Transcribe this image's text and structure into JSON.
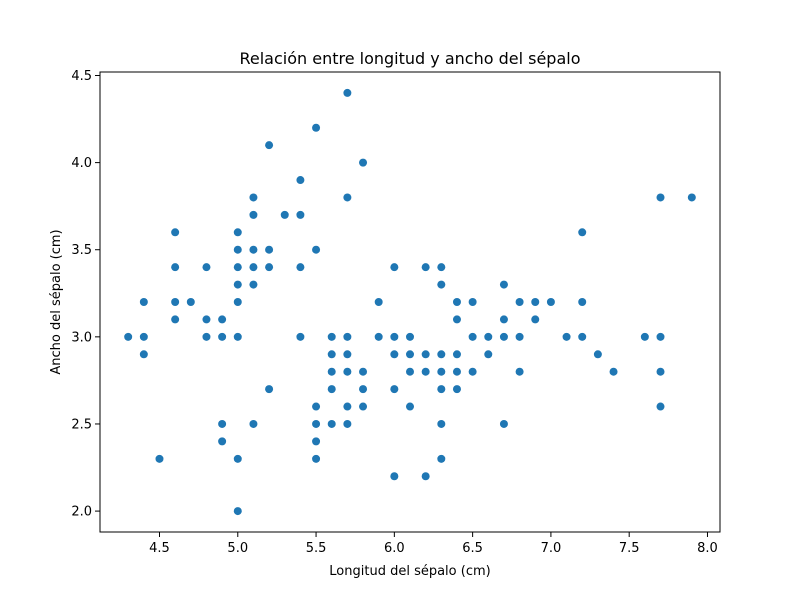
{
  "chart_data": {
    "type": "scatter",
    "title": "Relación entre longitud y ancho del sépalo",
    "xlabel": "Longitud del sépalo (cm)",
    "ylabel": "Ancho del sépalo (cm)",
    "xlim": [
      4.12,
      8.08
    ],
    "ylim": [
      1.88,
      4.52
    ],
    "xticks": [
      4.5,
      5.0,
      5.5,
      6.0,
      6.5,
      7.0,
      7.5,
      8.0
    ],
    "xtick_labels": [
      "4.5",
      "5.0",
      "5.5",
      "6.0",
      "6.5",
      "7.0",
      "7.5",
      "8.0"
    ],
    "yticks": [
      2.0,
      2.5,
      3.0,
      3.5,
      4.0,
      4.5
    ],
    "ytick_labels": [
      "2.0",
      "2.5",
      "3.0",
      "3.5",
      "4.0",
      "4.5"
    ],
    "grid": false,
    "legend": "none",
    "marker_color": "#1f77b4",
    "points": [
      [
        4.3,
        3.0
      ],
      [
        4.4,
        2.9
      ],
      [
        4.4,
        3.0
      ],
      [
        4.4,
        3.2
      ],
      [
        4.5,
        2.3
      ],
      [
        4.6,
        3.1
      ],
      [
        4.6,
        3.2
      ],
      [
        4.6,
        3.4
      ],
      [
        4.6,
        3.6
      ],
      [
        4.7,
        3.2
      ],
      [
        4.8,
        3.0
      ],
      [
        4.8,
        3.1
      ],
      [
        4.8,
        3.4
      ],
      [
        4.9,
        2.4
      ],
      [
        4.9,
        2.5
      ],
      [
        4.9,
        3.0
      ],
      [
        4.9,
        3.1
      ],
      [
        5.0,
        2.0
      ],
      [
        5.0,
        2.3
      ],
      [
        5.0,
        3.0
      ],
      [
        5.0,
        3.2
      ],
      [
        5.0,
        3.3
      ],
      [
        5.0,
        3.4
      ],
      [
        5.0,
        3.5
      ],
      [
        5.0,
        3.6
      ],
      [
        5.1,
        2.5
      ],
      [
        5.1,
        3.3
      ],
      [
        5.1,
        3.4
      ],
      [
        5.1,
        3.5
      ],
      [
        5.1,
        3.7
      ],
      [
        5.1,
        3.8
      ],
      [
        5.2,
        2.7
      ],
      [
        5.2,
        3.4
      ],
      [
        5.2,
        3.5
      ],
      [
        5.2,
        4.1
      ],
      [
        5.3,
        3.7
      ],
      [
        5.4,
        3.0
      ],
      [
        5.4,
        3.4
      ],
      [
        5.4,
        3.7
      ],
      [
        5.4,
        3.9
      ],
      [
        5.5,
        2.3
      ],
      [
        5.5,
        2.4
      ],
      [
        5.5,
        2.5
      ],
      [
        5.5,
        2.6
      ],
      [
        5.5,
        3.5
      ],
      [
        5.5,
        4.2
      ],
      [
        5.6,
        2.5
      ],
      [
        5.6,
        2.7
      ],
      [
        5.6,
        2.8
      ],
      [
        5.6,
        2.9
      ],
      [
        5.6,
        3.0
      ],
      [
        5.7,
        2.5
      ],
      [
        5.7,
        2.6
      ],
      [
        5.7,
        2.8
      ],
      [
        5.7,
        2.9
      ],
      [
        5.7,
        3.0
      ],
      [
        5.7,
        3.8
      ],
      [
        5.7,
        4.4
      ],
      [
        5.8,
        2.6
      ],
      [
        5.8,
        2.7
      ],
      [
        5.8,
        2.8
      ],
      [
        5.8,
        4.0
      ],
      [
        5.9,
        3.0
      ],
      [
        5.9,
        3.2
      ],
      [
        6.0,
        2.2
      ],
      [
        6.0,
        2.7
      ],
      [
        6.0,
        2.9
      ],
      [
        6.0,
        3.0
      ],
      [
        6.0,
        3.4
      ],
      [
        6.1,
        2.6
      ],
      [
        6.1,
        2.8
      ],
      [
        6.1,
        2.9
      ],
      [
        6.1,
        3.0
      ],
      [
        6.2,
        2.2
      ],
      [
        6.2,
        2.8
      ],
      [
        6.2,
        2.9
      ],
      [
        6.2,
        3.4
      ],
      [
        6.3,
        2.3
      ],
      [
        6.3,
        2.5
      ],
      [
        6.3,
        2.7
      ],
      [
        6.3,
        2.8
      ],
      [
        6.3,
        2.9
      ],
      [
        6.3,
        3.3
      ],
      [
        6.3,
        3.4
      ],
      [
        6.4,
        2.7
      ],
      [
        6.4,
        2.8
      ],
      [
        6.4,
        2.9
      ],
      [
        6.4,
        3.1
      ],
      [
        6.4,
        3.2
      ],
      [
        6.5,
        2.8
      ],
      [
        6.5,
        3.0
      ],
      [
        6.5,
        3.2
      ],
      [
        6.6,
        2.9
      ],
      [
        6.6,
        3.0
      ],
      [
        6.7,
        2.5
      ],
      [
        6.7,
        3.0
      ],
      [
        6.7,
        3.1
      ],
      [
        6.7,
        3.3
      ],
      [
        6.8,
        2.8
      ],
      [
        6.8,
        3.0
      ],
      [
        6.8,
        3.2
      ],
      [
        6.9,
        3.1
      ],
      [
        6.9,
        3.2
      ],
      [
        7.0,
        3.2
      ],
      [
        7.1,
        3.0
      ],
      [
        7.2,
        3.0
      ],
      [
        7.2,
        3.2
      ],
      [
        7.2,
        3.6
      ],
      [
        7.3,
        2.9
      ],
      [
        7.4,
        2.8
      ],
      [
        7.6,
        3.0
      ],
      [
        7.7,
        2.6
      ],
      [
        7.7,
        2.8
      ],
      [
        7.7,
        3.0
      ],
      [
        7.7,
        3.8
      ],
      [
        7.9,
        3.8
      ]
    ]
  }
}
